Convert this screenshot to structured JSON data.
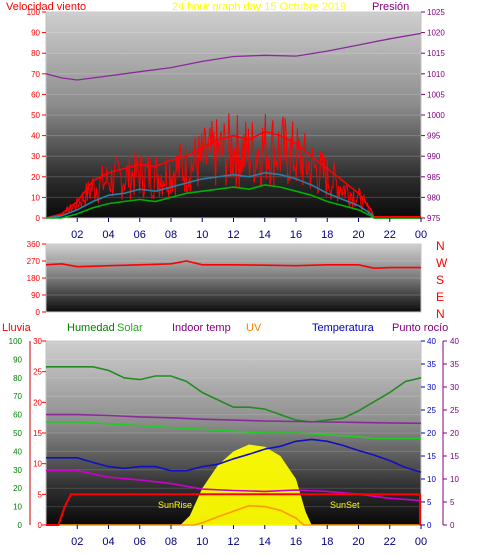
{
  "header": {
    "title": "24 hour graph day   15 Octubre 2019",
    "left_label": "Velocidad viento",
    "right_label": "Presión"
  },
  "colors": {
    "wind_speed": "#ff0000",
    "wind_gust": "#ff0000",
    "wind_avg": "#2e7da0",
    "wind_avg2": "#00b000",
    "pressure": "#8a2a9a",
    "direction": "#ff0000",
    "humidity": "#228b22",
    "solar": "#ffff00",
    "indoor_temp": "#8a2a9a",
    "uv": "#ff9900",
    "temperature": "#1010c0",
    "dew_point": "#cc00cc",
    "rain": "#ff0000",
    "label_red": "#ff0000",
    "label_green": "#008000",
    "label_purple": "#800080",
    "label_blue": "#0000c0",
    "label_orange": "#ff8000",
    "title_yellow": "#ffff00"
  },
  "legend": {
    "lluvia": "Lluvia",
    "humedad": "Humedad",
    "solar": "Solar",
    "indoor_temp": "Indoor temp",
    "uv": "UV",
    "temperatura": "Temperatura",
    "punto_rocio": "Punto rocío"
  },
  "compass": [
    "N",
    "W",
    "S",
    "E",
    "N"
  ],
  "annotations": {
    "sunrise": "SunRise",
    "sunset": "SunSet"
  },
  "chart_data": [
    {
      "type": "line",
      "x_ticks": [
        "02",
        "04",
        "06",
        "08",
        "10",
        "12",
        "14",
        "16",
        "18",
        "20",
        "22",
        "00"
      ],
      "left_axis": {
        "ticks": [
          "0",
          "10",
          "20",
          "30",
          "40",
          "50",
          "60",
          "70",
          "80",
          "90",
          "100"
        ],
        "ylim": [
          0,
          100
        ]
      },
      "right_axis": {
        "ticks": [
          "975",
          "980",
          "985",
          "990",
          "995",
          "1000",
          "1005",
          "1010",
          "1015",
          "1020",
          "1025"
        ],
        "ylim": [
          975,
          1025
        ]
      },
      "series": [
        {
          "key": "pressure",
          "axis": "right",
          "x": [
            0,
            1,
            2,
            4,
            6,
            8,
            10,
            12,
            14,
            16,
            18,
            20,
            22,
            24
          ],
          "y": [
            1010,
            1009,
            1008.5,
            1009.5,
            1010.5,
            1011.5,
            1013,
            1014.2,
            1014.5,
            1014.3,
            1015.5,
            1017,
            1018.5,
            1019.8
          ]
        },
        {
          "key": "wind_speed",
          "axis": "left",
          "x": [
            0,
            1,
            2,
            3,
            4,
            5,
            6,
            7,
            8,
            9,
            10,
            11,
            12,
            13,
            14,
            15,
            16,
            17,
            18,
            19,
            20,
            20.8,
            21,
            24
          ],
          "y": [
            0,
            2,
            8,
            18,
            22,
            24,
            26,
            25,
            28,
            30,
            34,
            38,
            40,
            38,
            42,
            40,
            36,
            30,
            24,
            18,
            12,
            4,
            0,
            0
          ]
        },
        {
          "key": "wind_avg",
          "axis": "left",
          "x": [
            0,
            1,
            2,
            3,
            4,
            5,
            6,
            7,
            8,
            9,
            10,
            11,
            12,
            13,
            14,
            15,
            16,
            17,
            18,
            19,
            20,
            20.8,
            21,
            24
          ],
          "y": [
            0,
            1,
            4,
            8,
            11,
            12,
            14,
            13,
            15,
            17,
            19,
            20,
            21,
            20,
            22,
            21,
            19,
            16,
            12,
            9,
            6,
            2,
            0,
            0
          ]
        },
        {
          "key": "wind_avg2",
          "axis": "left",
          "x": [
            0,
            1,
            2,
            3,
            4,
            5,
            6,
            7,
            8,
            9,
            10,
            11,
            12,
            13,
            14,
            15,
            16,
            17,
            18,
            19,
            20,
            20.8,
            21,
            24
          ],
          "y": [
            0,
            0,
            2,
            5,
            7,
            8,
            9,
            8,
            10,
            12,
            13,
            14,
            15,
            14,
            16,
            15,
            13,
            11,
            8,
            6,
            4,
            1,
            0,
            0
          ]
        }
      ]
    },
    {
      "type": "line",
      "left_axis": {
        "ticks": [
          "0",
          "90",
          "180",
          "270",
          "360"
        ],
        "ylim": [
          0,
          360
        ]
      },
      "series": [
        {
          "key": "direction",
          "axis": "left",
          "x": [
            0,
            1,
            2,
            4,
            6,
            8,
            9,
            10,
            12,
            14,
            16,
            18,
            20,
            21,
            22,
            24
          ],
          "y": [
            250,
            255,
            240,
            245,
            250,
            255,
            270,
            250,
            250,
            248,
            245,
            250,
            250,
            232,
            235,
            235
          ]
        }
      ]
    },
    {
      "type": "line",
      "x_ticks": [
        "02",
        "04",
        "06",
        "08",
        "10",
        "12",
        "14",
        "16",
        "18",
        "20",
        "22",
        "00"
      ],
      "left_axis": {
        "ticks": [
          "0",
          "10",
          "20",
          "30",
          "40",
          "50",
          "60",
          "70",
          "80",
          "90",
          "100"
        ],
        "ylim": [
          0,
          100
        ]
      },
      "left_axis2": {
        "ticks": [
          "0",
          "5",
          "10",
          "15",
          "20",
          "25",
          "30"
        ],
        "ylim": [
          0,
          30
        ]
      },
      "right_axis": {
        "ticks": [
          "0",
          "5",
          "10",
          "15",
          "20",
          "25",
          "30",
          "35",
          "40"
        ],
        "ylim": [
          0,
          40
        ]
      },
      "right_axis2": {
        "ticks": [
          "0",
          "5",
          "10",
          "15",
          "20",
          "25",
          "30",
          "35",
          "40"
        ],
        "ylim": [
          0,
          40
        ]
      },
      "series": [
        {
          "key": "solar",
          "axis": "right",
          "type": "area",
          "x": [
            0,
            8.6,
            9.2,
            10,
            11,
            12,
            13,
            14,
            15,
            16,
            16.6,
            17,
            24
          ],
          "y": [
            0,
            0,
            2,
            8,
            13,
            16,
            17.5,
            17,
            15,
            10,
            3,
            0,
            0
          ]
        },
        {
          "key": "humidity",
          "axis": "left",
          "x": [
            0,
            1,
            2,
            3,
            4,
            5,
            6,
            7,
            8,
            9,
            10,
            11,
            12,
            13,
            14,
            15,
            16,
            17,
            18,
            19,
            20,
            21,
            22,
            23,
            24
          ],
          "y": [
            86,
            86,
            86,
            86,
            84,
            80,
            79,
            81,
            81,
            78,
            72,
            68,
            64,
            64,
            63,
            60,
            57,
            56,
            57,
            58,
            62,
            67,
            72,
            78,
            80
          ]
        },
        {
          "key": "indoor_temp",
          "axis": "right",
          "x": [
            0,
            2,
            4,
            6,
            8,
            10,
            12,
            14,
            16,
            18,
            20,
            22,
            24
          ],
          "y": [
            24,
            24,
            23.8,
            23.5,
            23.3,
            23,
            22.8,
            22.6,
            22.5,
            22.4,
            22.3,
            22.2,
            22.1
          ]
        },
        {
          "key": "humidity_base",
          "axis": "left",
          "x": [
            0,
            2,
            4,
            6,
            8,
            10,
            12,
            14,
            16,
            18,
            20,
            21,
            22,
            24
          ],
          "y": [
            56,
            56,
            55,
            54,
            53,
            52,
            51,
            50,
            50,
            49,
            48,
            47,
            47,
            47
          ]
        },
        {
          "key": "temperature",
          "axis": "right",
          "x": [
            0,
            2,
            3,
            4,
            5,
            6,
            7,
            8,
            9,
            10,
            11,
            12,
            13,
            14,
            15,
            16,
            17,
            18,
            19,
            20,
            21,
            22,
            23,
            24
          ],
          "y": [
            14.6,
            14.6,
            13.6,
            12.7,
            12.3,
            12.7,
            12.7,
            11.8,
            11.8,
            12.7,
            13.2,
            14.4,
            15.4,
            16.5,
            17.1,
            18.2,
            18.6,
            18.2,
            17.3,
            16.2,
            15.2,
            14,
            12.5,
            11.5
          ]
        },
        {
          "key": "dew_point",
          "axis": "right",
          "x": [
            0,
            2,
            4,
            6,
            8,
            10,
            12,
            14,
            16,
            18,
            20,
            22,
            24
          ],
          "y": [
            11.8,
            11.8,
            10.4,
            9.8,
            9,
            7.8,
            7.5,
            7.3,
            7.6,
            7.3,
            6.7,
            5.8,
            5.3
          ]
        },
        {
          "key": "uv",
          "axis": "right",
          "x": [
            0,
            9.5,
            10,
            11,
            12,
            13,
            14,
            15,
            16,
            16.5,
            24
          ],
          "y": [
            0,
            0,
            0.5,
            1.8,
            3,
            4.2,
            4,
            3.2,
            1.5,
            0,
            0
          ]
        },
        {
          "key": "rain",
          "axis": "left2",
          "x": [
            0,
            0.8,
            1.2,
            1.6,
            24
          ],
          "y": [
            0,
            0,
            3,
            5,
            5
          ]
        }
      ]
    }
  ]
}
